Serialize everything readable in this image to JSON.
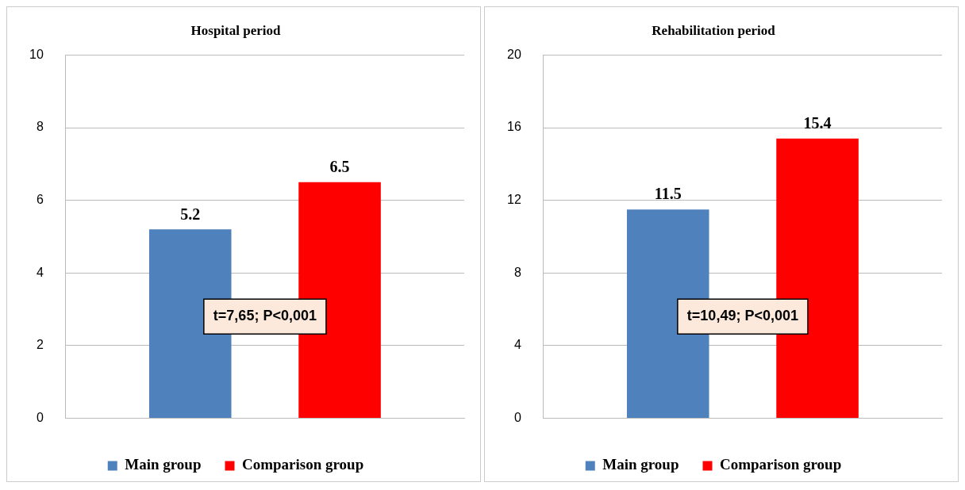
{
  "chart_data": [
    {
      "type": "bar",
      "title": "Hospital period",
      "categories": [
        null
      ],
      "series": [
        {
          "name": "Main group",
          "color": "#4f81bd",
          "values": [
            5.2
          ]
        },
        {
          "name": "Comparison group",
          "color": "#ff0000",
          "values": [
            6.5
          ]
        }
      ],
      "ylim": [
        0,
        10
      ],
      "yticks": [
        0,
        2,
        4,
        6,
        8,
        10
      ],
      "grid": "y",
      "legend": "bottom",
      "data_labels": true,
      "annotations": [
        "t=7,65; P<0,001"
      ]
    },
    {
      "type": "bar",
      "title": "Rehabilitation period",
      "categories": [
        null
      ],
      "series": [
        {
          "name": "Main group",
          "color": "#4f81bd",
          "values": [
            11.5
          ]
        },
        {
          "name": "Comparison group",
          "color": "#ff0000",
          "values": [
            15.4
          ]
        }
      ],
      "ylim": [
        0,
        20
      ],
      "yticks": [
        0,
        4,
        8,
        12,
        16,
        20
      ],
      "grid": "y",
      "legend": "bottom",
      "data_labels": true,
      "annotations": [
        "t=10,49; P<0,001"
      ]
    }
  ]
}
